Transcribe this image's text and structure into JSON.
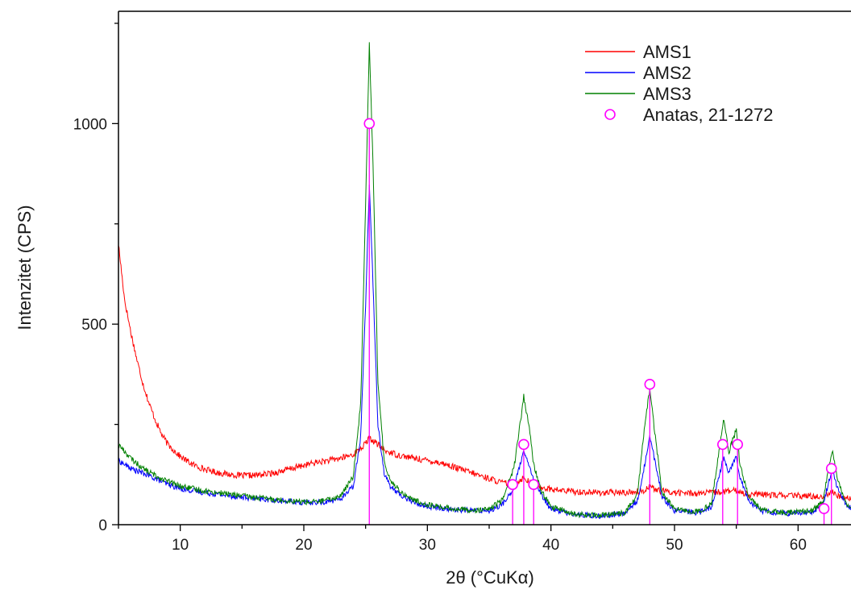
{
  "chart_data": {
    "type": "line",
    "title": "",
    "xlabel": "2θ (°CuKα)",
    "ylabel": "Intenzitet (CPS)",
    "xlim": [
      5,
      65
    ],
    "ylim": [
      0,
      1280
    ],
    "x_ticks": [
      10,
      20,
      30,
      40,
      50,
      60
    ],
    "y_ticks": [
      0,
      500,
      1000
    ],
    "grid": false,
    "legend_position": "top-right",
    "series": [
      {
        "name": "AMS1",
        "color": "#ff0000",
        "noise": 8,
        "points": [
          [
            5,
            700
          ],
          [
            5.5,
            560
          ],
          [
            6,
            480
          ],
          [
            6.5,
            410
          ],
          [
            7,
            350
          ],
          [
            7.5,
            300
          ],
          [
            8,
            260
          ],
          [
            8.5,
            225
          ],
          [
            9,
            200
          ],
          [
            10,
            170
          ],
          [
            11,
            150
          ],
          [
            12,
            138
          ],
          [
            13,
            130
          ],
          [
            14,
            125
          ],
          [
            15,
            122
          ],
          [
            16,
            123
          ],
          [
            17,
            126
          ],
          [
            18,
            132
          ],
          [
            19,
            140
          ],
          [
            20,
            148
          ],
          [
            21,
            155
          ],
          [
            22,
            160
          ],
          [
            23,
            166
          ],
          [
            24,
            175
          ],
          [
            24.8,
            195
          ],
          [
            25.3,
            215
          ],
          [
            25.8,
            205
          ],
          [
            26.5,
            185
          ],
          [
            27.5,
            175
          ],
          [
            28.5,
            168
          ],
          [
            30,
            160
          ],
          [
            31,
            155
          ],
          [
            32,
            145
          ],
          [
            33,
            135
          ],
          [
            34,
            125
          ],
          [
            35,
            115
          ],
          [
            36,
            105
          ],
          [
            37,
            100
          ],
          [
            37.8,
            118
          ],
          [
            38.5,
            100
          ],
          [
            40,
            88
          ],
          [
            42,
            82
          ],
          [
            44,
            80
          ],
          [
            46,
            80
          ],
          [
            47.5,
            84
          ],
          [
            48,
            98
          ],
          [
            48.5,
            86
          ],
          [
            50,
            80
          ],
          [
            52,
            78
          ],
          [
            54,
            82
          ],
          [
            55,
            85
          ],
          [
            56,
            76
          ],
          [
            58,
            74
          ],
          [
            60,
            72
          ],
          [
            62,
            70
          ],
          [
            62.7,
            82
          ],
          [
            63.3,
            70
          ],
          [
            65,
            65
          ]
        ]
      },
      {
        "name": "AMS2",
        "color": "#0000ff",
        "noise": 7,
        "points": [
          [
            5,
            160
          ],
          [
            6,
            140
          ],
          [
            7,
            128
          ],
          [
            8,
            115
          ],
          [
            9,
            100
          ],
          [
            10,
            90
          ],
          [
            12,
            80
          ],
          [
            14,
            72
          ],
          [
            16,
            65
          ],
          [
            18,
            60
          ],
          [
            20,
            55
          ],
          [
            21,
            55
          ],
          [
            22,
            58
          ],
          [
            23,
            65
          ],
          [
            24,
            95
          ],
          [
            24.6,
            220
          ],
          [
            25,
            550
          ],
          [
            25.3,
            850
          ],
          [
            25.6,
            600
          ],
          [
            26,
            250
          ],
          [
            26.5,
            130
          ],
          [
            27,
            95
          ],
          [
            28,
            70
          ],
          [
            29,
            55
          ],
          [
            30,
            45
          ],
          [
            32,
            38
          ],
          [
            34,
            35
          ],
          [
            35,
            36
          ],
          [
            36,
            48
          ],
          [
            37,
            90
          ],
          [
            37.5,
            150
          ],
          [
            37.8,
            180
          ],
          [
            38.2,
            150
          ],
          [
            38.6,
            110
          ],
          [
            39.2,
            75
          ],
          [
            40,
            40
          ],
          [
            42,
            25
          ],
          [
            44,
            22
          ],
          [
            46,
            28
          ],
          [
            47,
            60
          ],
          [
            47.6,
            150
          ],
          [
            48,
            225
          ],
          [
            48.4,
            160
          ],
          [
            49,
            70
          ],
          [
            50,
            35
          ],
          [
            52,
            30
          ],
          [
            53,
            45
          ],
          [
            53.6,
            120
          ],
          [
            54,
            170
          ],
          [
            54.4,
            130
          ],
          [
            54.7,
            150
          ],
          [
            55,
            170
          ],
          [
            55.3,
            120
          ],
          [
            56,
            60
          ],
          [
            57,
            35
          ],
          [
            59,
            28
          ],
          [
            61,
            30
          ],
          [
            62,
            45
          ],
          [
            62.5,
            110
          ],
          [
            62.8,
            135
          ],
          [
            63.2,
            90
          ],
          [
            64,
            45
          ],
          [
            65,
            32
          ]
        ]
      },
      {
        "name": "AMS3",
        "color": "#008000",
        "noise": 7,
        "points": [
          [
            5,
            200
          ],
          [
            6,
            165
          ],
          [
            7,
            140
          ],
          [
            8,
            122
          ],
          [
            9,
            108
          ],
          [
            10,
            96
          ],
          [
            12,
            84
          ],
          [
            14,
            76
          ],
          [
            16,
            68
          ],
          [
            18,
            62
          ],
          [
            20,
            57
          ],
          [
            21,
            57
          ],
          [
            22,
            62
          ],
          [
            23,
            72
          ],
          [
            24,
            120
          ],
          [
            24.6,
            300
          ],
          [
            25,
            800
          ],
          [
            25.3,
            1200
          ],
          [
            25.6,
            900
          ],
          [
            26,
            350
          ],
          [
            26.5,
            160
          ],
          [
            27,
            110
          ],
          [
            28,
            78
          ],
          [
            29,
            60
          ],
          [
            30,
            50
          ],
          [
            32,
            40
          ],
          [
            34,
            36
          ],
          [
            35,
            38
          ],
          [
            36,
            60
          ],
          [
            37,
            140
          ],
          [
            37.5,
            250
          ],
          [
            37.8,
            320
          ],
          [
            38.2,
            250
          ],
          [
            38.6,
            150
          ],
          [
            39.2,
            85
          ],
          [
            40,
            45
          ],
          [
            42,
            25
          ],
          [
            44,
            23
          ],
          [
            46,
            30
          ],
          [
            47,
            75
          ],
          [
            47.6,
            250
          ],
          [
            48,
            340
          ],
          [
            48.4,
            230
          ],
          [
            49,
            80
          ],
          [
            50,
            38
          ],
          [
            52,
            32
          ],
          [
            53,
            55
          ],
          [
            53.6,
            180
          ],
          [
            54,
            265
          ],
          [
            54.4,
            180
          ],
          [
            54.7,
            210
          ],
          [
            55,
            235
          ],
          [
            55.3,
            150
          ],
          [
            56,
            70
          ],
          [
            57,
            38
          ],
          [
            59,
            30
          ],
          [
            61,
            33
          ],
          [
            62,
            55
          ],
          [
            62.5,
            150
          ],
          [
            62.8,
            185
          ],
          [
            63.2,
            110
          ],
          [
            64,
            50
          ],
          [
            65,
            35
          ]
        ]
      }
    ],
    "reference": {
      "name": "Anatas, 21-1272",
      "color": "#ff00ff",
      "marker": "open-circle",
      "peaks": [
        [
          25.3,
          1000
        ],
        [
          36.9,
          100
        ],
        [
          37.8,
          200
        ],
        [
          38.6,
          100
        ],
        [
          48.0,
          350
        ],
        [
          53.9,
          200
        ],
        [
          55.1,
          200
        ],
        [
          62.1,
          40
        ],
        [
          62.7,
          140
        ]
      ]
    }
  }
}
